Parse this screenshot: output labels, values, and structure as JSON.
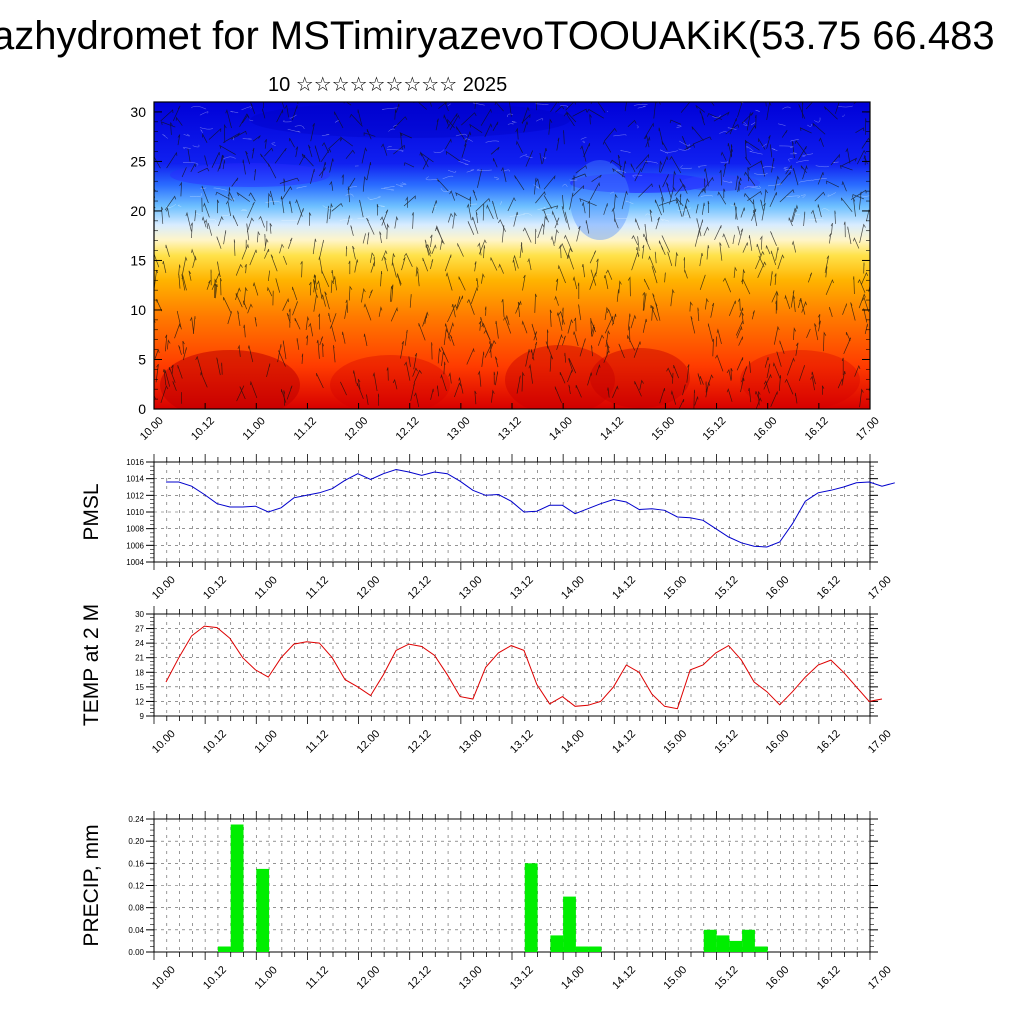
{
  "title": "azhydromet for MSTimiryazevoTOOUAKiK(53.75 66.483",
  "subtitle": "10 ☆☆☆☆☆☆☆☆☆ 2025",
  "time_ticks": [
    "10.00",
    "10.12",
    "11.00",
    "11.12",
    "12.00",
    "12.12",
    "13.00",
    "13.12",
    "14.00",
    "14.12",
    "15.00",
    "15.12",
    "16.00",
    "16.12",
    "17.00"
  ],
  "chart_data": [
    {
      "type": "heatmap",
      "title": "",
      "xlabel": "",
      "ylabel": "",
      "x_categories": [
        "10.00",
        "10.12",
        "11.00",
        "11.12",
        "12.00",
        "12.12",
        "13.00",
        "13.12",
        "14.00",
        "14.12",
        "15.00",
        "15.12",
        "16.00",
        "16.12",
        "17.00"
      ],
      "yticks": [
        0,
        5,
        10,
        15,
        20,
        25,
        30
      ],
      "ylim": [
        0,
        31
      ],
      "color_scale": [
        "#d80000",
        "#ff3c00",
        "#ff7a00",
        "#ffb400",
        "#ffe24a",
        "#fff5c8",
        "#d8ecff",
        "#6ec0ff",
        "#2a6cff",
        "#1020f0",
        "#0000d8"
      ],
      "overlay": "wind streamlines / vectors"
    },
    {
      "type": "line",
      "ylabel": "PMSL",
      "ylim": [
        1004,
        1016
      ],
      "yticks": [
        1004,
        1006,
        1008,
        1010,
        1012,
        1014,
        1016
      ],
      "color": "#0000cc",
      "values": [
        1013.6,
        1013.6,
        1013.1,
        1012.1,
        1011.0,
        1010.6,
        1010.6,
        1010.7,
        1010.0,
        1010.5,
        1011.7,
        1012.0,
        1012.3,
        1012.8,
        1013.8,
        1014.6,
        1013.9,
        1014.6,
        1015.1,
        1014.8,
        1014.4,
        1014.8,
        1014.6,
        1013.7,
        1012.6,
        1012.0,
        1012.1,
        1011.3,
        1010.0,
        1010.1,
        1010.8,
        1010.8,
        1009.8,
        1010.4,
        1011.0,
        1011.5,
        1011.2,
        1010.3,
        1010.4,
        1010.2,
        1009.4,
        1009.3,
        1009.0,
        1008.0,
        1007.0,
        1006.3,
        1005.9,
        1005.8,
        1006.4,
        1008.6,
        1011.3,
        1012.3,
        1012.6,
        1013.0,
        1013.5,
        1013.6,
        1013.1,
        1013.5
      ]
    },
    {
      "type": "line",
      "ylabel": "TEMP at 2 M",
      "ylim": [
        9,
        30
      ],
      "yticks": [
        9,
        12,
        15,
        18,
        21,
        24,
        27,
        30
      ],
      "color": "#dd0000",
      "values": [
        16.0,
        21.0,
        25.5,
        27.5,
        27.2,
        25.0,
        21.0,
        18.5,
        17.0,
        21.0,
        23.8,
        24.3,
        24.0,
        21.0,
        16.5,
        15.0,
        13.2,
        17.5,
        22.5,
        23.8,
        23.3,
        21.5,
        17.5,
        13.0,
        12.5,
        19.0,
        22.0,
        23.5,
        22.5,
        15.5,
        11.5,
        13.0,
        11.0,
        11.2,
        12.0,
        15.0,
        19.5,
        18.0,
        13.5,
        11.0,
        10.5,
        18.5,
        19.5,
        22.0,
        23.5,
        20.5,
        16.0,
        14.0,
        11.3,
        14.0,
        17.0,
        19.5,
        20.5,
        18.0,
        15.0,
        12.0,
        12.5
      ]
    },
    {
      "type": "bar",
      "ylabel": "PRECIP, mm",
      "ylim": [
        0,
        0.24
      ],
      "yticks": [
        "0.00",
        "0.04",
        "0.08",
        "0.12",
        "0.16",
        "0.20",
        "0.24"
      ],
      "color": "#00ee00",
      "values": [
        0,
        0,
        0,
        0,
        0,
        0.01,
        0.23,
        0,
        0.15,
        0,
        0,
        0,
        0,
        0,
        0,
        0,
        0,
        0,
        0,
        0,
        0,
        0,
        0,
        0,
        0,
        0,
        0,
        0,
        0,
        0.16,
        0,
        0.03,
        0.1,
        0.01,
        0.01,
        0,
        0,
        0,
        0,
        0,
        0,
        0,
        0,
        0.04,
        0.03,
        0.02,
        0.04,
        0.01,
        0,
        0,
        0,
        0,
        0,
        0,
        0,
        0
      ]
    }
  ]
}
